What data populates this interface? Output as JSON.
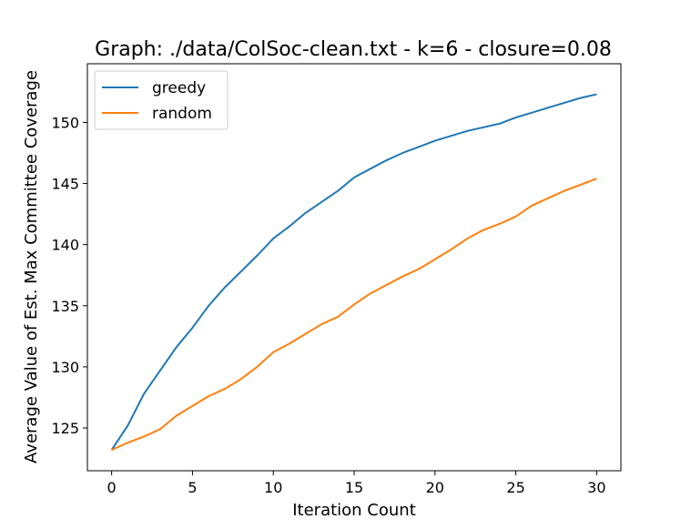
{
  "chart_data": {
    "type": "line",
    "title": "Graph: ./data/ColSoc-clean.txt - k=6 - closure=0.08",
    "xlabel": "Iteration Count",
    "ylabel": "Average Value of Est. Max Committee Coverage",
    "xlim": [
      -1.5,
      31.5
    ],
    "ylim": [
      121.5,
      154.8
    ],
    "x_ticks": [
      0,
      5,
      10,
      15,
      20,
      25,
      30
    ],
    "y_ticks": [
      125,
      130,
      135,
      140,
      145,
      150
    ],
    "grid": false,
    "legend_position": "upper-left",
    "x": [
      0,
      1,
      2,
      3,
      4,
      5,
      6,
      7,
      8,
      9,
      10,
      11,
      12,
      13,
      14,
      15,
      16,
      17,
      18,
      19,
      20,
      21,
      22,
      23,
      24,
      25,
      26,
      27,
      28,
      29,
      30
    ],
    "series": [
      {
        "name": "greedy",
        "color": "#1f77b4",
        "values": [
          123.2,
          125.2,
          127.8,
          129.7,
          131.6,
          133.2,
          135.0,
          136.5,
          137.8,
          139.1,
          140.5,
          141.5,
          142.6,
          143.5,
          144.4,
          145.5,
          146.2,
          146.9,
          147.5,
          148.0,
          148.5,
          148.9,
          149.3,
          149.6,
          149.9,
          150.4,
          150.8,
          151.2,
          151.6,
          152.0,
          152.3
        ]
      },
      {
        "name": "random",
        "color": "#ff7f0e",
        "values": [
          123.2,
          123.8,
          124.3,
          124.9,
          126.0,
          126.8,
          127.6,
          128.2,
          129.0,
          130.0,
          131.2,
          131.9,
          132.7,
          133.5,
          134.1,
          135.1,
          136.0,
          136.7,
          137.4,
          138.0,
          138.8,
          139.6,
          140.5,
          141.2,
          141.7,
          142.3,
          143.2,
          143.8,
          144.4,
          144.9,
          145.4
        ]
      }
    ]
  }
}
